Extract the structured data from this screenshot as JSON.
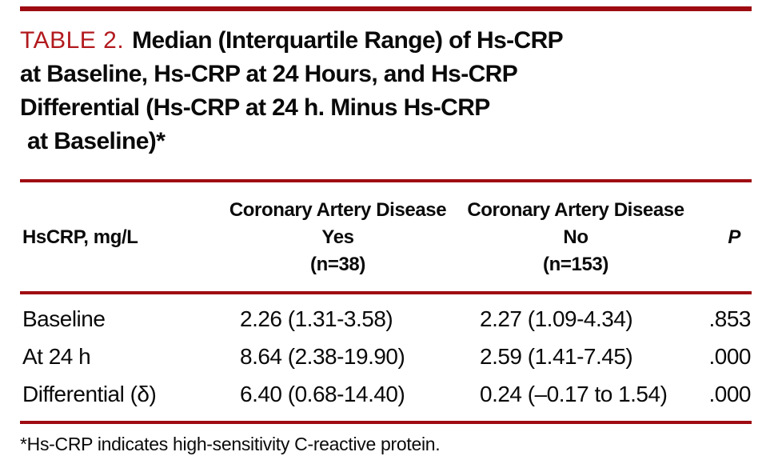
{
  "colors": {
    "rule_red": "#9e0c12",
    "title_red": "#b21a1e",
    "text_black": "#0a0a0a",
    "background": "#ffffff"
  },
  "title": {
    "table_label": "TABLE 2.",
    "line1": "Median (Interquartile Range) of Hs-CRP",
    "line2": "at Baseline, Hs-CRP at 24 Hours, and Hs-CRP",
    "line3": "Differential (Hs-CRP at 24 h. Minus Hs-CRP",
    "line4": "at Baseline)*"
  },
  "table": {
    "row_header": "HsCRP, mg/L",
    "p_header": "P",
    "groups": [
      {
        "line1": "Coronary Artery Disease",
        "line2": "Yes",
        "line3": "(n=38)"
      },
      {
        "line1": "Coronary Artery Disease",
        "line2": "No",
        "line3": "(n=153)"
      }
    ],
    "rows": [
      {
        "label": "Baseline",
        "cad_yes": "2.26 (1.31-3.58)",
        "cad_no": "2.27 (1.09-4.34)",
        "p": ".853"
      },
      {
        "label": "At 24 h",
        "cad_yes": "8.64 (2.38-19.90)",
        "cad_no": "2.59 (1.41-7.45)",
        "p": ".000"
      },
      {
        "label": "Differential (δ)",
        "cad_yes": "6.40 (0.68-14.40)",
        "cad_no": "0.24 (–0.17 to 1.54)",
        "p": ".000"
      }
    ]
  },
  "footnote": "*Hs-CRP indicates high-sensitivity C-reactive protein.",
  "chart_data": {
    "type": "table",
    "title": "TABLE 2. Median (Interquartile Range) of Hs-CRP at Baseline, Hs-CRP at 24 Hours, and Hs-CRP Differential (Hs-CRP at 24 h. Minus Hs-CRP at Baseline)*",
    "columns": [
      "HsCRP, mg/L",
      "Coronary Artery Disease Yes (n=38)",
      "Coronary Artery Disease No (n=153)",
      "P"
    ],
    "rows": [
      [
        "Baseline",
        "2.26 (1.31-3.58)",
        "2.27 (1.09-4.34)",
        ".853"
      ],
      [
        "At 24 h",
        "8.64 (2.38-19.90)",
        "2.59 (1.41-7.45)",
        ".000"
      ],
      [
        "Differential (δ)",
        "6.40 (0.68-14.40)",
        "0.24 (–0.17 to 1.54)",
        ".000"
      ]
    ]
  }
}
